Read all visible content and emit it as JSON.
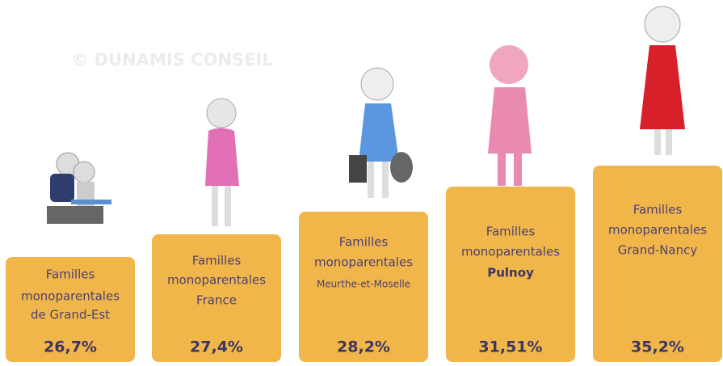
{
  "watermark": "© DUNAMIS CONSEIL",
  "items": [
    {
      "lines": [
        "Familles",
        "monoparentales",
        "de Grand-Est"
      ],
      "value": "26,7%"
    },
    {
      "lines": [
        "Familles",
        "monoparentales",
        "France"
      ],
      "value": "27,4%"
    },
    {
      "lines": [
        "Familles",
        "monoparentales",
        "Meurthe-et-Moselle"
      ],
      "value": "28,2%"
    },
    {
      "lines": [
        "Familles",
        "monoparentales",
        "Pulnoy"
      ],
      "value": "31,51%"
    },
    {
      "lines": [
        "Familles",
        "monoparentales",
        "Grand-Nancy"
      ],
      "value": "35,2%"
    }
  ]
}
